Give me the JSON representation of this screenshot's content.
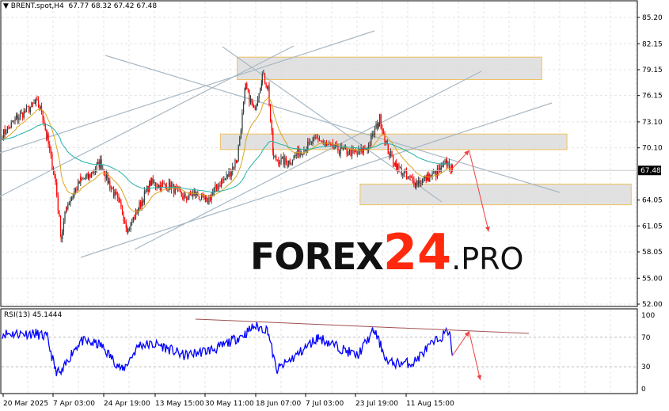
{
  "chart_header": {
    "symbol": "BRENT.spot,H4",
    "ohlc": "67.77 68.32 67.42 67.48"
  },
  "rsi_header": {
    "label": "RSI(13) 45.1444"
  },
  "watermark": {
    "part1": "FOREX",
    "part2": "24",
    "part3": ".PRO"
  },
  "colors": {
    "bull": "#2f3f3f",
    "bear": "#ff0000",
    "ma_fast": "#daa520",
    "ma_slow": "#20b2aa",
    "rsi": "#0000ff",
    "zone_border": "#f0c060",
    "zone_fill": "#dcdcdc",
    "trendline": "#a8b8c4",
    "arrow": "#f04040",
    "logo_red": "#ff2a0e"
  },
  "chart_data": [
    {
      "type": "candlestick",
      "title": "",
      "ylim": [
        52.0,
        85.2
      ],
      "y_ticks": [
        "85.20",
        "82.15",
        "79.15",
        "76.15",
        "73.10",
        "70.10",
        "64.05",
        "61.05",
        "58.05",
        "55.00",
        "52.00"
      ],
      "current_price_label": "67.48",
      "x_ticks": [
        "20 Mar 2025",
        "7 Apr 03:00",
        "24 Apr 19:00",
        "13 May 15:00",
        "30 May 11:00",
        "18 Jun 07:00",
        "7 Jul 03:00",
        "23 Jul 19:00",
        "11 Aug 15:00"
      ],
      "grid": true,
      "closes": [
        [
          "2025-03-20",
          71.6
        ],
        [
          "2025-03-25",
          73.5
        ],
        [
          "2025-04-01",
          75.3
        ],
        [
          "2025-04-03",
          74.5
        ],
        [
          "2025-04-05",
          71.2
        ],
        [
          "2025-04-08",
          66.1
        ],
        [
          "2025-04-10",
          59.7
        ],
        [
          "2025-04-12",
          63.4
        ],
        [
          "2025-04-17",
          66.3
        ],
        [
          "2025-04-20",
          66.8
        ],
        [
          "2025-04-24",
          68.4
        ],
        [
          "2025-04-27",
          66.1
        ],
        [
          "2025-05-01",
          63.4
        ],
        [
          "2025-05-04",
          60.6
        ],
        [
          "2025-05-08",
          63.4
        ],
        [
          "2025-05-12",
          66.1
        ],
        [
          "2025-05-15",
          65.7
        ],
        [
          "2025-05-19",
          65.7
        ],
        [
          "2025-05-24",
          64.3
        ],
        [
          "2025-05-28",
          64.8
        ],
        [
          "2025-06-01",
          63.8
        ],
        [
          "2025-06-05",
          65.7
        ],
        [
          "2025-06-09",
          67.0
        ],
        [
          "2025-06-12",
          68.9
        ],
        [
          "2025-06-15",
          77.1
        ],
        [
          "2025-06-18",
          74.4
        ],
        [
          "2025-06-21",
          78.5
        ],
        [
          "2025-06-23",
          77.1
        ],
        [
          "2025-06-25",
          68.9
        ],
        [
          "2025-06-30",
          68.4
        ],
        [
          "2025-07-05",
          69.8
        ],
        [
          "2025-07-11",
          71.2
        ],
        [
          "2025-07-14",
          70.3
        ],
        [
          "2025-07-19",
          69.8
        ],
        [
          "2025-07-25",
          69.4
        ],
        [
          "2025-07-29",
          70.3
        ],
        [
          "2025-08-02",
          73.5
        ],
        [
          "2025-08-05",
          69.8
        ],
        [
          "2025-08-08",
          68.0
        ],
        [
          "2025-08-12",
          66.6
        ],
        [
          "2025-08-15",
          66.1
        ],
        [
          "2025-08-19",
          66.6
        ],
        [
          "2025-08-24",
          67.5
        ],
        [
          "2025-08-26",
          68.4
        ],
        [
          "2025-08-28",
          67.48
        ]
      ],
      "zones": [
        {
          "from": "2025-06-12",
          "to": "2025-09-29",
          "low": 78.0,
          "high": 80.6
        },
        {
          "from": "2025-06-06",
          "to": "2025-10-08",
          "low": 69.9,
          "high": 71.7
        },
        {
          "from": "2025-07-26",
          "to": "2025-10-31",
          "low": 63.5,
          "high": 65.9
        }
      ],
      "projection": [
        [
          "2025-08-28",
          67.7
        ],
        [
          "2025-09-03",
          69.8
        ],
        [
          "2025-09-10",
          60.4
        ]
      ]
    },
    {
      "type": "line",
      "title": "RSI(13)",
      "ylim": [
        0,
        100
      ],
      "y_ticks": [
        "100",
        "70",
        "30",
        "0"
      ],
      "levels": [
        70,
        30
      ],
      "values": [
        [
          "2025-03-20",
          75
        ],
        [
          "2025-04-01",
          75
        ],
        [
          "2025-04-05",
          70
        ],
        [
          "2025-04-08",
          25
        ],
        [
          "2025-04-10",
          20
        ],
        [
          "2025-04-14",
          50
        ],
        [
          "2025-04-17",
          65
        ],
        [
          "2025-04-24",
          60
        ],
        [
          "2025-05-02",
          25
        ],
        [
          "2025-05-08",
          60
        ],
        [
          "2025-05-15",
          60
        ],
        [
          "2025-05-24",
          45
        ],
        [
          "2025-06-05",
          55
        ],
        [
          "2025-06-15",
          75
        ],
        [
          "2025-06-18",
          85
        ],
        [
          "2025-06-23",
          80
        ],
        [
          "2025-06-26",
          25
        ],
        [
          "2025-07-03",
          45
        ],
        [
          "2025-07-11",
          70
        ],
        [
          "2025-07-19",
          55
        ],
        [
          "2025-07-25",
          45
        ],
        [
          "2025-07-31",
          80
        ],
        [
          "2025-08-05",
          35
        ],
        [
          "2025-08-14",
          35
        ],
        [
          "2025-08-19",
          55
        ],
        [
          "2025-08-27",
          80
        ],
        [
          "2025-08-28",
          45
        ]
      ],
      "projection": [
        [
          "2025-08-28",
          45
        ],
        [
          "2025-09-03",
          78
        ],
        [
          "2025-09-07",
          12
        ]
      ]
    }
  ]
}
